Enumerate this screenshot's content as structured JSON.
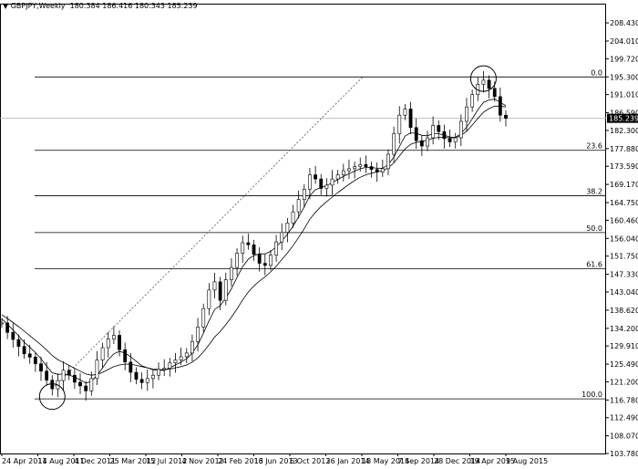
{
  "header": {
    "menu_glyph": "▼",
    "symbol": "GBPJPY,Weekly",
    "ohlc": "180.384 186.416 180.343 185.239"
  },
  "chart_data": {
    "type": "candlestick",
    "symbol": "GBPJPY",
    "timeframe": "Weekly",
    "open": 180.384,
    "high": 186.416,
    "low": 180.343,
    "close": 185.239,
    "current_price_label": "185.239",
    "ylim": [
      103.78,
      210.0
    ],
    "y_ticks": [
      "208.430",
      "204.010",
      "199.720",
      "195.300",
      "191.010",
      "186.590",
      "182.300",
      "177.880",
      "173.590",
      "169.170",
      "164.750",
      "160.460",
      "156.040",
      "151.750",
      "147.330",
      "143.040",
      "138.620",
      "134.200",
      "129.910",
      "125.490",
      "121.200",
      "116.780",
      "112.490",
      "108.070",
      "103.780"
    ],
    "x_ticks": [
      "24 Apr 2011",
      "14 Aug 2011",
      "4 Dec 2011",
      "25 Mar 2012",
      "15 Jul 2012",
      "4 Nov 2012",
      "24 Feb 2013",
      "16 Jun 2013",
      "6 Oct 2013",
      "26 Jan 2014",
      "18 May 2014",
      "7 Sep 2014",
      "28 Dec 2014",
      "19 Apr 2015",
      "9 Aug 2015"
    ],
    "fibonacci": [
      {
        "label": "0.0",
        "price": 195.3
      },
      {
        "label": "23.6",
        "price": 177.46
      },
      {
        "label": "38.2",
        "price": 166.41
      },
      {
        "label": "50.0",
        "price": 157.48
      },
      {
        "label": "61.6",
        "price": 148.71
      },
      {
        "label": "100.0",
        "price": 117.05
      }
    ],
    "circled_points": [
      {
        "date": "Oct 2011",
        "price": 117.6
      },
      {
        "date": "Jun 2015",
        "price": 194.9
      }
    ],
    "trendline": {
      "from": {
        "date": "Oct 2011",
        "price": 119.5
      },
      "to": {
        "date": "Apr 2014",
        "price": 195.3
      }
    },
    "close_series": [
      135.5,
      133.2,
      131.5,
      129.8,
      128.0,
      127.2,
      125.6,
      123.8,
      121.6,
      119.5,
      121.5,
      124.0,
      122.8,
      121.1,
      120.2,
      119.0,
      122.0,
      126.5,
      129.5,
      131.6,
      132.5,
      129.0,
      126.0,
      123.5,
      121.8,
      121.0,
      122.0,
      122.8,
      124.2,
      124.5,
      125.8,
      126.5,
      127.3,
      128.2,
      131.0,
      134.5,
      139.0,
      143.5,
      145.5,
      141.0,
      146.0,
      149.0,
      152.5,
      155.0,
      154.5,
      152.2,
      150.0,
      149.5,
      152.0,
      155.2,
      157.5,
      159.8,
      162.5,
      165.5,
      168.0,
      171.5,
      170.5,
      168.2,
      169.0,
      170.5,
      171.5,
      172.5,
      173.0,
      173.5,
      174.0,
      173.5,
      172.8,
      172.2,
      173.0,
      176.5,
      181.5,
      186.0,
      187.5,
      183.0,
      179.8,
      178.5,
      180.5,
      183.5,
      182.0,
      180.3,
      179.5,
      180.5,
      184.5,
      188.0,
      191.0,
      193.5,
      194.5,
      192.5,
      190.5,
      186.0,
      185.239
    ],
    "moving_averages": [
      {
        "name": "fast",
        "values": [
          136.5,
          135.2,
          133.8,
          132.4,
          130.8,
          129.6,
          128.3,
          126.8,
          125.0,
          123.4,
          123.0,
          123.1,
          122.9,
          122.3,
          121.7,
          120.9,
          121.3,
          122.8,
          124.6,
          126.6,
          128.0,
          128.6,
          128.2,
          127.3,
          126.2,
          125.1,
          124.6,
          124.1,
          124.0,
          124.0,
          124.6,
          125.3,
          126.0,
          126.8,
          128.2,
          130.2,
          133.0,
          136.0,
          138.8,
          139.7,
          141.6,
          143.8,
          146.6,
          149.2,
          151.0,
          151.9,
          152.3,
          152.3,
          152.9,
          154.0,
          155.4,
          157.1,
          159.0,
          161.3,
          163.7,
          166.4,
          167.9,
          168.4,
          168.9,
          169.6,
          170.4,
          171.1,
          171.8,
          172.4,
          173.0,
          173.3,
          173.3,
          173.1,
          173.1,
          174.0,
          175.8,
          178.4,
          180.9,
          181.7,
          181.6,
          181.1,
          181.0,
          181.5,
          181.5,
          181.1,
          180.7,
          180.6,
          181.5,
          183.1,
          185.1,
          187.3,
          189.1,
          189.7,
          189.9,
          189.1,
          188.3
        ]
      },
      {
        "name": "slow",
        "values": [
          137.5,
          136.6,
          135.6,
          134.6,
          133.5,
          132.4,
          131.3,
          130.2,
          128.9,
          127.6,
          126.6,
          125.9,
          125.2,
          124.5,
          123.8,
          123.1,
          122.8,
          123.0,
          123.5,
          124.2,
          124.9,
          125.3,
          125.5,
          125.5,
          125.2,
          124.9,
          124.6,
          124.3,
          124.2,
          124.1,
          124.3,
          124.6,
          124.9,
          125.3,
          126.0,
          127.0,
          128.5,
          130.2,
          132.1,
          133.4,
          135.1,
          136.9,
          138.9,
          141.1,
          143.0,
          144.5,
          145.7,
          146.7,
          147.9,
          149.3,
          150.9,
          152.5,
          154.3,
          156.3,
          158.4,
          160.7,
          162.4,
          163.8,
          165.0,
          166.1,
          167.2,
          168.2,
          169.2,
          170.1,
          170.9,
          171.5,
          171.9,
          172.2,
          172.5,
          173.2,
          174.4,
          176.1,
          177.8,
          178.9,
          179.4,
          179.6,
          179.9,
          180.4,
          180.6,
          180.6,
          180.5,
          180.5,
          181.1,
          182.1,
          183.6,
          185.2,
          186.7,
          187.6,
          188.2,
          188.2,
          188.0
        ]
      }
    ]
  }
}
